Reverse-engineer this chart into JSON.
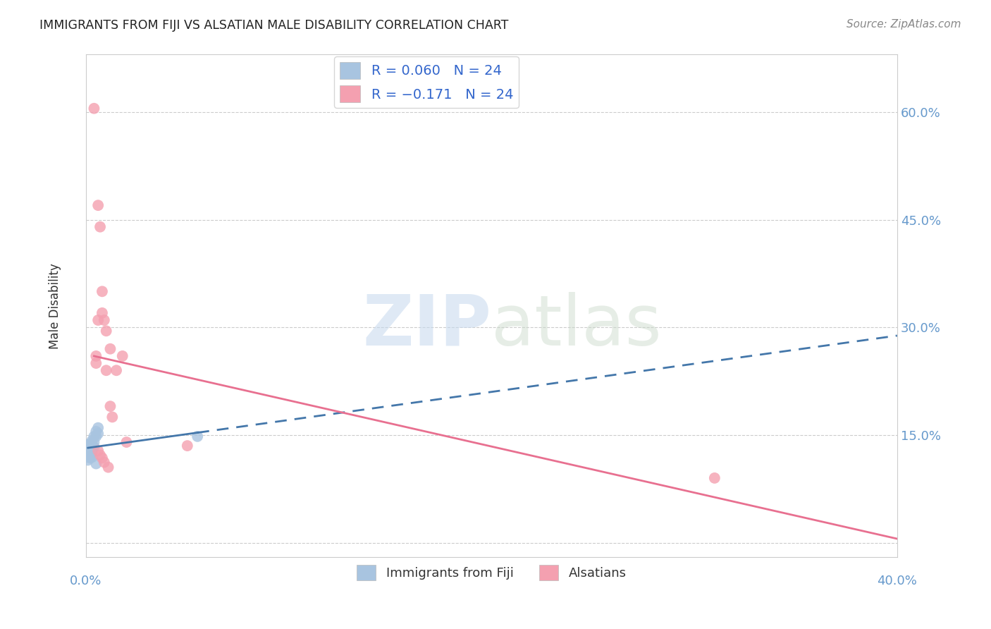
{
  "title": "IMMIGRANTS FROM FIJI VS ALSATIAN MALE DISABILITY CORRELATION CHART",
  "source": "Source: ZipAtlas.com",
  "ylabel": "Male Disability",
  "watermark_zip": "ZIP",
  "watermark_atlas": "atlas",
  "xlim": [
    0.0,
    0.4
  ],
  "ylim": [
    -0.02,
    0.68
  ],
  "yticks": [
    0.0,
    0.15,
    0.3,
    0.45,
    0.6
  ],
  "ytick_labels": [
    "",
    "15.0%",
    "30.0%",
    "45.0%",
    "60.0%"
  ],
  "blue_scatter_x": [
    0.001,
    0.001,
    0.001,
    0.001,
    0.001,
    0.002,
    0.002,
    0.002,
    0.002,
    0.002,
    0.003,
    0.003,
    0.003,
    0.003,
    0.003,
    0.004,
    0.004,
    0.004,
    0.005,
    0.005,
    0.005,
    0.006,
    0.006,
    0.055
  ],
  "blue_scatter_y": [
    0.135,
    0.13,
    0.125,
    0.12,
    0.115,
    0.138,
    0.132,
    0.128,
    0.122,
    0.118,
    0.142,
    0.136,
    0.13,
    0.125,
    0.119,
    0.148,
    0.14,
    0.133,
    0.155,
    0.148,
    0.11,
    0.16,
    0.152,
    0.148
  ],
  "pink_scatter_x": [
    0.004,
    0.005,
    0.006,
    0.006,
    0.007,
    0.007,
    0.008,
    0.008,
    0.009,
    0.009,
    0.01,
    0.01,
    0.011,
    0.012,
    0.012,
    0.013,
    0.015,
    0.018,
    0.02,
    0.05,
    0.31,
    0.005,
    0.006,
    0.008
  ],
  "pink_scatter_y": [
    0.605,
    0.26,
    0.47,
    0.128,
    0.44,
    0.122,
    0.35,
    0.118,
    0.31,
    0.112,
    0.295,
    0.24,
    0.105,
    0.27,
    0.19,
    0.175,
    0.24,
    0.26,
    0.14,
    0.135,
    0.09,
    0.25,
    0.31,
    0.32
  ],
  "blue_color": "#a8c4e0",
  "pink_color": "#f4a0b0",
  "blue_line_color": "#4477aa",
  "pink_line_color": "#e87090",
  "legend_blue_label": "R = 0.060   N = 24",
  "legend_pink_label": "R = −0.171   N = 24",
  "legend_color": "#3366cc",
  "title_color": "#222222",
  "source_color": "#888888",
  "axis_label_color": "#6699cc",
  "background_color": "#ffffff",
  "grid_color": "#cccccc"
}
